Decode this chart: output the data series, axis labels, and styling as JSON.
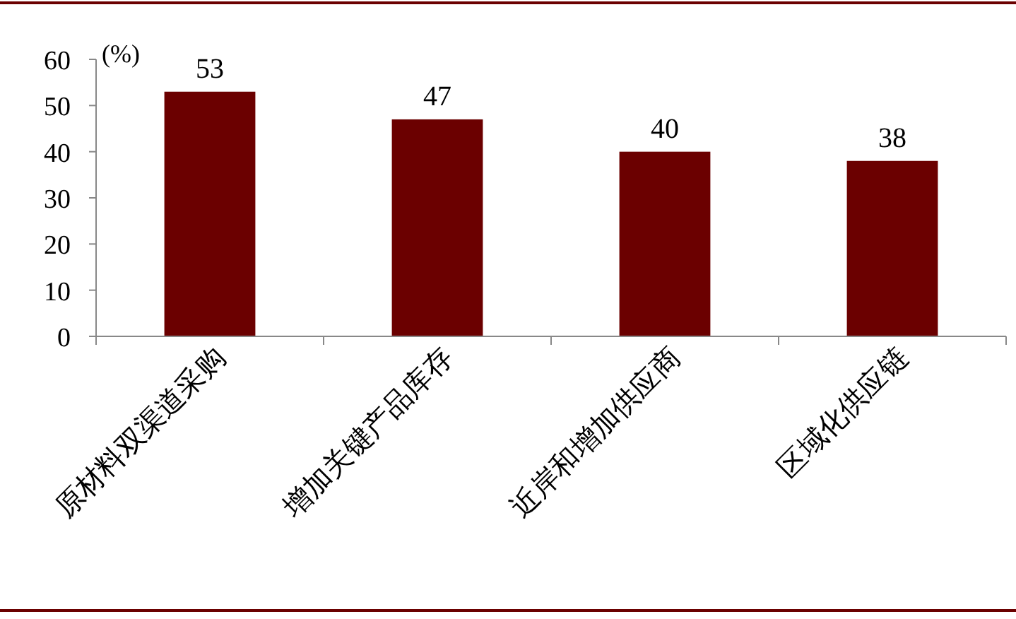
{
  "chart_data": {
    "type": "bar",
    "ylabel": "(%)",
    "categories": [
      "原材料双渠道采购",
      "增加关键产品库存",
      "近岸和增加供应商",
      "区域化供应链"
    ],
    "values": [
      53,
      47,
      40,
      38
    ],
    "color": "#6b0000",
    "ylim": [
      0,
      60
    ],
    "yticks": [
      0,
      10,
      20,
      30,
      40,
      50,
      60
    ],
    "data_labels": true
  }
}
